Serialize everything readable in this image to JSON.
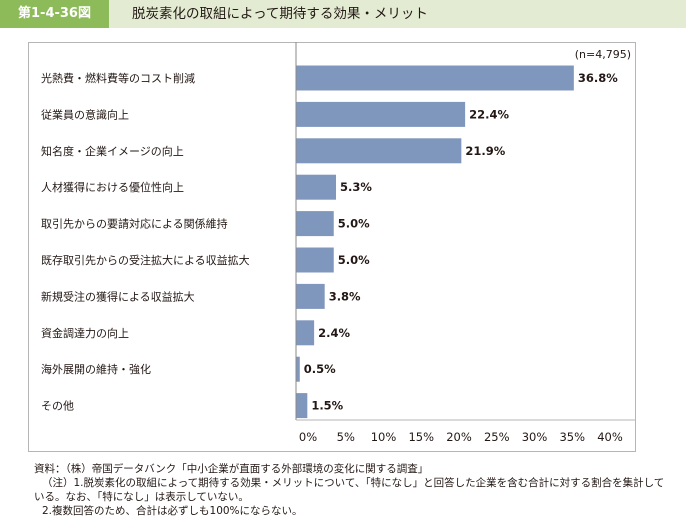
{
  "header": {
    "figure_label": "第1-4-36図",
    "title": "脱炭素化の取組によって期待する効果・メリット"
  },
  "chart_data": {
    "type": "bar",
    "orientation": "horizontal",
    "title": "脱炭素化の取組によって期待する効果・メリット",
    "sample_note": "(n=4,795)",
    "categories": [
      "光熱費・燃料費等のコスト削減",
      "従業員の意識向上",
      "知名度・企業イメージの向上",
      "人材獲得における優位性向上",
      "取引先からの要請対応による関係維持",
      "既存取引先からの受注拡大による収益拡大",
      "新規受注の獲得による収益拡大",
      "資金調達力の向上",
      "海外展開の維持・強化",
      "その他"
    ],
    "values": [
      36.8,
      22.4,
      21.9,
      5.3,
      5.0,
      5.0,
      3.8,
      2.4,
      0.5,
      1.5
    ],
    "value_labels": [
      "36.8%",
      "22.4%",
      "21.9%",
      "5.3%",
      "5.0%",
      "5.0%",
      "3.8%",
      "2.4%",
      "0.5%",
      "1.5%"
    ],
    "x_ticks": [
      0,
      5,
      10,
      15,
      20,
      25,
      30,
      35,
      40
    ],
    "x_tick_labels": [
      "0%",
      "5%",
      "10%",
      "15%",
      "20%",
      "25%",
      "30%",
      "35%",
      "40%"
    ],
    "xlim": [
      0,
      40
    ],
    "grid": false,
    "bar_color": "#8097bd"
  },
  "notes": {
    "source": "資料：（株）帝国データバンク「中小企業が直面する外部環境の変化に関する調査」",
    "note1_line1": "（注）1.脱炭素化の取組によって期待する効果・メリットについて、「特になし」と回答した企業を含む合計に対する割合を集計して",
    "note1_line2": "いる。なお、「特になし」は表示していない。",
    "note2": "2.複数回答のため、合計は必ずしも100%にならない。"
  }
}
